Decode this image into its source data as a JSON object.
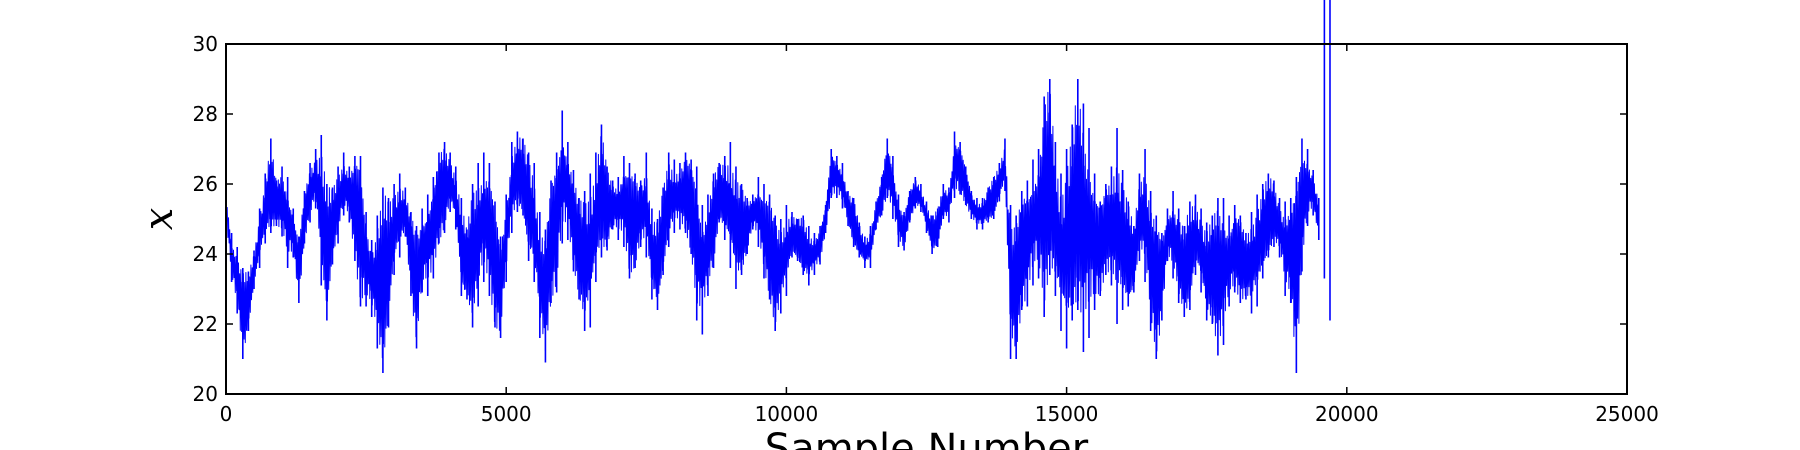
{
  "chart_data": {
    "type": "line",
    "title": "",
    "xlabel": "Sample Number",
    "ylabel": "x",
    "xlim": [
      0,
      25000
    ],
    "ylim": [
      20,
      30
    ],
    "xticks": [
      0,
      5000,
      10000,
      15000,
      20000,
      25000
    ],
    "yticks": [
      20,
      22,
      24,
      26,
      28,
      30
    ],
    "grid": false,
    "colors": {
      "line": "#0000ff",
      "axes": "#000000",
      "background": "#ffffff"
    },
    "series": [
      {
        "x": [
          0,
          100,
          200,
          300,
          400,
          500,
          600,
          700,
          800,
          900,
          1000,
          1100,
          1200,
          1300,
          1400,
          1500,
          1600,
          1700,
          1800,
          1900,
          2000,
          2100,
          2200,
          2300,
          2400,
          2500,
          2600,
          2700,
          2800,
          2900,
          3000,
          3100,
          3200,
          3300,
          3400,
          3500,
          3600,
          3700,
          3800,
          3900,
          4000,
          4100,
          4200,
          4300,
          4400,
          4500,
          4600,
          4700,
          4800,
          4900,
          5000,
          5100,
          5200,
          5300,
          5400,
          5500,
          5600,
          5700,
          5800,
          5900,
          6000,
          6100,
          6200,
          6300,
          6400,
          6500,
          6600,
          6700,
          6800,
          6900,
          7000,
          7100,
          7200,
          7300,
          7400,
          7500,
          7600,
          7700,
          7800,
          7900,
          8000,
          8100,
          8200,
          8300,
          8400,
          8500,
          8600,
          8700,
          8800,
          8900,
          9000,
          9100,
          9200,
          9300,
          9400,
          9500,
          9600,
          9700,
          9800,
          9900,
          10000,
          10100,
          10200,
          10300,
          10400,
          10500,
          10600,
          10700,
          10800,
          10900,
          11000,
          11100,
          11200,
          11300,
          11400,
          11500,
          11600,
          11700,
          11800,
          11900,
          12000,
          12100,
          12200,
          12300,
          12400,
          12500,
          12600,
          12700,
          12800,
          12900,
          13000,
          13100,
          13200,
          13300,
          13400,
          13500,
          13600,
          13700,
          13800,
          13900,
          14000,
          14100,
          14200,
          14300,
          14400,
          14500,
          14600,
          14700,
          14800,
          14900,
          15000,
          15100,
          15200,
          15300,
          15400,
          15500,
          15600,
          15700,
          15800,
          15900,
          16000,
          16100,
          16200,
          16300,
          16400,
          16500,
          16600,
          16700,
          16800,
          16900,
          17000,
          17100,
          17200,
          17300,
          17400,
          17500,
          17600,
          17700,
          17800,
          17900,
          18000,
          18100,
          18200,
          18300,
          18400,
          18500,
          18600,
          18700,
          18800,
          18900,
          19000,
          19100,
          19200,
          19300,
          19400,
          19500,
          19600,
          19700,
          19800,
          19900,
          20000,
          20100,
          20200,
          20300,
          20400,
          20480
        ],
        "min": [
          24.9,
          23.2,
          22.3,
          21.0,
          21.8,
          23.0,
          23.6,
          24.3,
          24.6,
          24.8,
          24.5,
          23.6,
          23.9,
          22.6,
          24.3,
          24.9,
          25.3,
          23.1,
          22.1,
          23.7,
          24.3,
          25.1,
          24.9,
          23.8,
          22.5,
          22.5,
          22.2,
          21.3,
          20.6,
          21.9,
          23.4,
          23.9,
          24.5,
          22.8,
          21.3,
          22.9,
          22.8,
          23.3,
          24.3,
          24.6,
          25.2,
          24.7,
          22.8,
          22.7,
          21.9,
          22.5,
          23.2,
          22.8,
          21.9,
          21.6,
          23.2,
          24.6,
          25.2,
          25.1,
          23.8,
          23.2,
          21.6,
          20.9,
          22.6,
          22.9,
          24.3,
          24.4,
          23.5,
          22.7,
          21.8,
          21.9,
          23.2,
          23.9,
          24.1,
          24.7,
          24.4,
          24.2,
          23.3,
          23.6,
          24.2,
          23.9,
          22.7,
          22.4,
          23.4,
          24.2,
          24.6,
          24.7,
          24.6,
          24.0,
          22.1,
          21.7,
          22.8,
          23.6,
          24.9,
          24.4,
          23.6,
          23.0,
          23.4,
          24.0,
          24.7,
          24.2,
          23.3,
          22.7,
          21.8,
          22.3,
          22.8,
          23.9,
          23.8,
          23.4,
          23.1,
          23.4,
          23.7,
          24.6,
          25.6,
          25.6,
          25.3,
          24.8,
          24.2,
          23.9,
          23.6,
          23.6,
          24.7,
          25.1,
          25.6,
          25.0,
          24.2,
          24.1,
          24.9,
          25.3,
          25.2,
          24.6,
          24.0,
          24.2,
          25.0,
          24.9,
          25.6,
          25.7,
          25.4,
          25.0,
          24.7,
          24.7,
          24.9,
          25.0,
          25.5,
          25.8,
          21.0,
          21.0,
          22.4,
          22.5,
          23.1,
          23.3,
          22.2,
          23.4,
          22.8,
          21.8,
          21.3,
          22.1,
          22.4,
          21.2,
          21.6,
          22.4,
          22.8,
          23.4,
          23.1,
          22.0,
          22.4,
          22.5,
          22.9,
          23.8,
          23.2,
          21.8,
          21.0,
          22.1,
          23.8,
          23.3,
          22.6,
          22.2,
          22.4,
          23.4,
          22.9,
          22.1,
          22.0,
          21.1,
          21.4,
          22.5,
          22.9,
          22.6,
          22.7,
          22.3,
          22.5,
          23.3,
          23.9,
          24.2,
          23.9,
          22.8,
          22.6,
          20.6,
          23.5,
          24.8,
          25.1,
          24.4,
          23.3,
          22.1
        ],
        "max": [
          25.8,
          24.6,
          24.2,
          23.6,
          23.5,
          24.1,
          25.3,
          26.3,
          27.3,
          26.1,
          26.5,
          26.2,
          25.3,
          24.5,
          25.8,
          26.6,
          27.0,
          27.4,
          26.0,
          25.9,
          26.5,
          26.9,
          26.5,
          26.8,
          26.8,
          25.2,
          24.4,
          25.1,
          25.9,
          25.6,
          26.0,
          26.3,
          25.9,
          25.2,
          24.8,
          25.3,
          25.7,
          26.2,
          26.9,
          27.2,
          26.9,
          26.5,
          25.6,
          24.7,
          26.0,
          26.6,
          26.9,
          26.6,
          25.5,
          24.5,
          25.7,
          27.2,
          27.5,
          27.3,
          26.9,
          26.6,
          25.2,
          24.7,
          26.1,
          26.9,
          28.1,
          27.2,
          26.4,
          25.6,
          25.8,
          26.3,
          26.9,
          27.7,
          26.5,
          26.1,
          26.2,
          26.8,
          26.6,
          26.3,
          26.1,
          26.9,
          25.3,
          25.0,
          25.9,
          26.9,
          26.7,
          26.6,
          26.9,
          26.7,
          26.5,
          25.4,
          25.7,
          26.3,
          26.6,
          26.8,
          27.2,
          26.5,
          26.0,
          25.6,
          25.7,
          26.2,
          26.0,
          25.7,
          25.1,
          25.0,
          25.4,
          25.2,
          25.0,
          25.1,
          24.8,
          24.6,
          24.8,
          25.4,
          27.0,
          26.8,
          26.6,
          25.8,
          25.6,
          24.9,
          24.5,
          24.8,
          25.5,
          26.2,
          27.3,
          26.8,
          25.7,
          25.2,
          25.8,
          26.2,
          26.0,
          25.5,
          25.1,
          25.3,
          26.0,
          25.9,
          27.5,
          27.2,
          26.5,
          25.8,
          25.6,
          25.6,
          25.9,
          26.2,
          26.6,
          27.3,
          25.4,
          25.1,
          25.8,
          26.1,
          26.7,
          27.0,
          28.5,
          29.0,
          27.2,
          26.3,
          27.0,
          27.7,
          29.0,
          28.3,
          27.6,
          26.3,
          25.5,
          26.0,
          26.5,
          27.6,
          26.4,
          25.5,
          24.8,
          26.3,
          27.0,
          25.8,
          25.1,
          24.6,
          25.3,
          25.8,
          25.3,
          24.8,
          25.5,
          25.7,
          25.3,
          24.9,
          25.1,
          25.6,
          25.6,
          25.1,
          25.4,
          25.1,
          24.6,
          25.2,
          25.7,
          26.0,
          26.3,
          26.1,
          25.6,
          25.5,
          25.6,
          26.2,
          27.3,
          27.0,
          26.4,
          25.6
        ]
      }
    ]
  }
}
